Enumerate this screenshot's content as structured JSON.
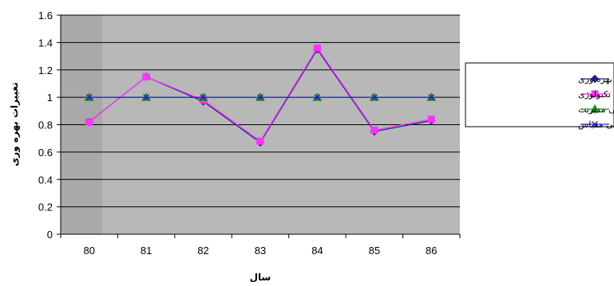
{
  "chart_data": {
    "type": "line",
    "title": "",
    "xlabel": "سال",
    "ylabel": "تغییرات بهره وری",
    "categories": [
      "80",
      "81",
      "82",
      "83",
      "84",
      "85",
      "86"
    ],
    "ylim": [
      0,
      1.6
    ],
    "yticks": [
      "0",
      "0.2",
      "0.4",
      "0.6",
      "0.8",
      "1",
      "1.2",
      "1.4",
      "1.6"
    ],
    "grid": true,
    "legend_position": "right",
    "series": [
      {
        "name": "تغییرات بهره وری",
        "values": [
          0.82,
          1.15,
          0.97,
          0.67,
          1.35,
          0.75,
          0.83
        ],
        "color": "#1f1f8f",
        "marker": "diamond"
      },
      {
        "name": "تغییرات تکنولوژی",
        "values": [
          0.82,
          1.15,
          0.98,
          0.68,
          1.36,
          0.76,
          0.84
        ],
        "color": "#ff33ff",
        "marker": "square"
      },
      {
        "name": "تغییرات کارایی مدیریت",
        "values": [
          1,
          1,
          1,
          1,
          1,
          1,
          1
        ],
        "color": "#1a8a1a",
        "marker": "triangle"
      },
      {
        "name": "تغییرات کارایی مقیاس",
        "values": [
          1,
          1,
          1,
          1,
          1,
          1,
          1
        ],
        "color": "#2323d6",
        "marker": "x"
      }
    ]
  }
}
